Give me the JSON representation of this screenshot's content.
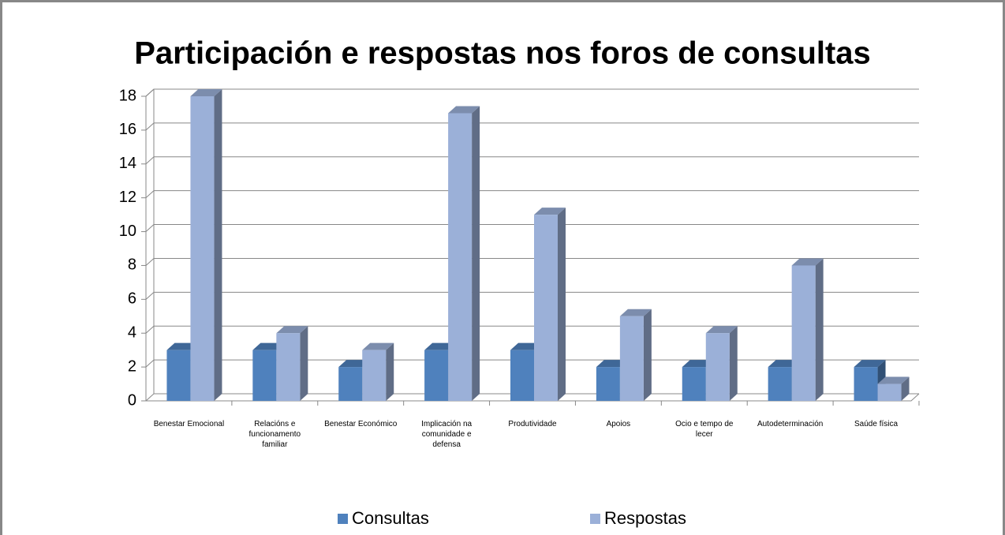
{
  "chart_data": {
    "type": "bar3d",
    "title": "Participación e respostas nos foros de consultas",
    "categories": [
      "Benestar Emocional",
      "Relacións e funcionamento familiar",
      "Benestar Económico",
      "Implicación na comunidade e defensa",
      "Produtividade",
      "Apoios",
      "Ocio e tempo de lecer",
      "Autodeterminación",
      "Saúde física"
    ],
    "series": [
      {
        "name": "Consultas",
        "color": "#4f81bd",
        "values": [
          3,
          3,
          2,
          3,
          3,
          2,
          2,
          2,
          2
        ]
      },
      {
        "name": "Respostas",
        "color": "#9bb0d8",
        "values": [
          18,
          4,
          3,
          17,
          11,
          5,
          4,
          8,
          1
        ]
      }
    ],
    "ylim": [
      0,
      18
    ],
    "yticks": [
      0,
      2,
      4,
      6,
      8,
      10,
      12,
      14,
      16,
      18
    ],
    "grid": true,
    "legend": "bottom"
  }
}
